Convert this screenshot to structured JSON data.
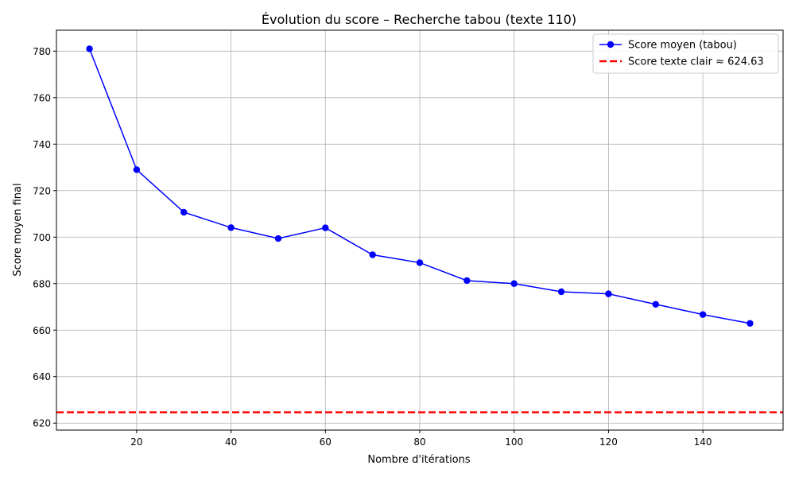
{
  "chart_data": {
    "type": "line",
    "title": "Évolution du score – Recherche tabou (texte 110)",
    "xlabel": "Nombre d'itérations",
    "ylabel": "Score moyen final",
    "xlim": [
      3,
      157
    ],
    "ylim": [
      617,
      789
    ],
    "xticks": [
      20,
      40,
      60,
      80,
      100,
      120,
      140
    ],
    "yticks": [
      620,
      640,
      660,
      680,
      700,
      720,
      740,
      760,
      780
    ],
    "grid": true,
    "legend_position": "top-right",
    "series": [
      {
        "name": "Score moyen (tabou)",
        "color": "#0000ff",
        "marker": "circle",
        "x": [
          10,
          20,
          30,
          40,
          50,
          60,
          70,
          80,
          90,
          100,
          110,
          120,
          130,
          140,
          150
        ],
        "y": [
          781.0,
          729.0,
          710.7,
          704.1,
          699.4,
          704.0,
          692.4,
          689.0,
          681.3,
          680.0,
          676.5,
          675.6,
          671.1,
          666.7,
          662.9
        ]
      }
    ],
    "reference_lines": [
      {
        "name": "Score texte clair ≈ 624.63",
        "orientation": "horizontal",
        "value": 624.63,
        "color": "#ff0000",
        "style": "dashed"
      }
    ]
  }
}
